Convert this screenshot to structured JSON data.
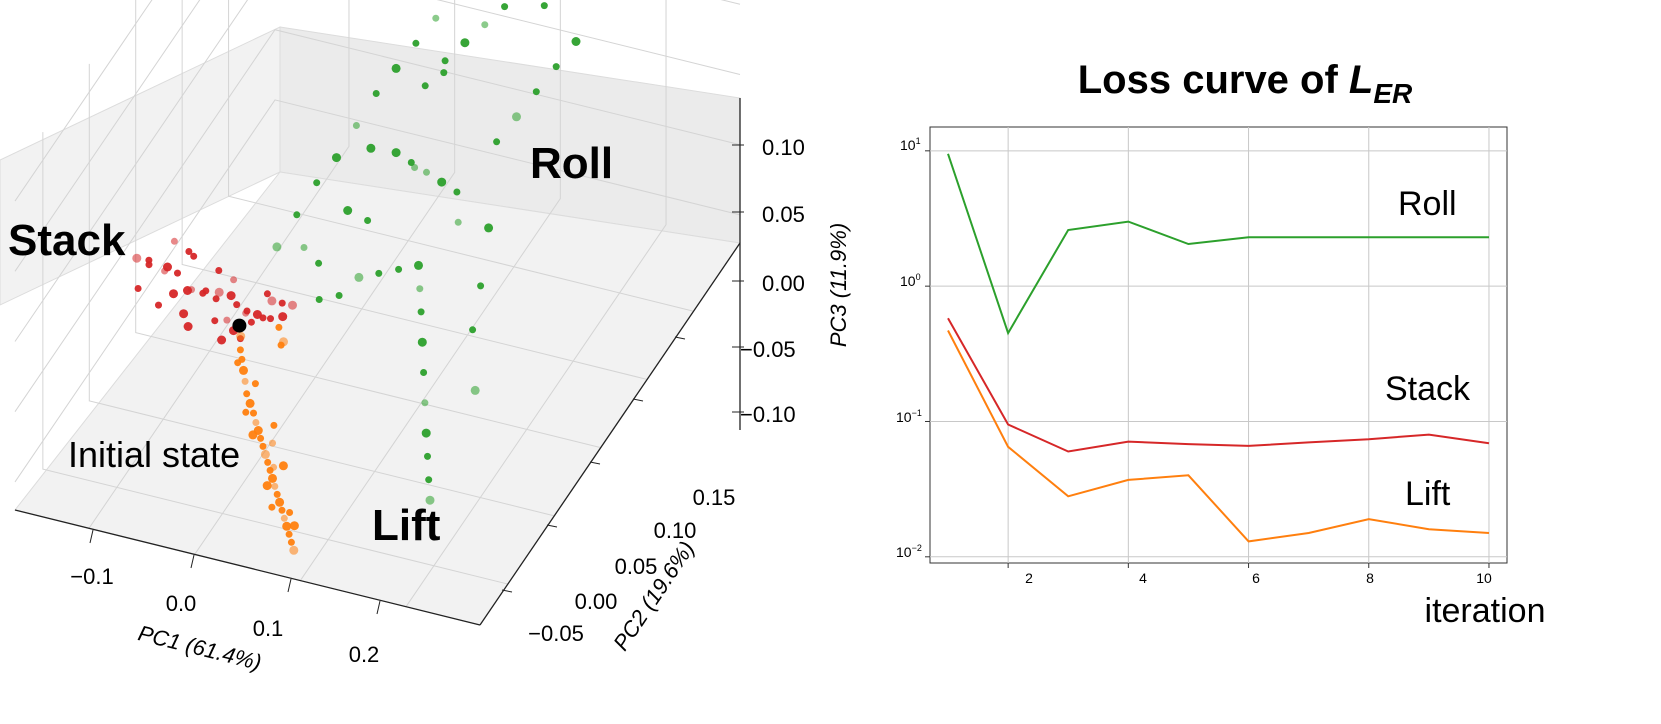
{
  "chart_data": [
    {
      "type": "scatter",
      "projection": "3d",
      "xlabel": "PC1 (61.4%)",
      "ylabel": "PC2 (19.6%)",
      "zlabel": "PC3 (11.9%)",
      "x_ticks": [
        "−0.1",
        "0.0",
        "0.1",
        "0.2"
      ],
      "y_ticks": [
        "−0.05",
        "0.00",
        "0.05",
        "0.10",
        "0.15"
      ],
      "z_ticks": [
        "0.10",
        "0.05",
        "0.00",
        "−0.05",
        "−0.10"
      ],
      "xlim": [
        -0.17,
        0.27
      ],
      "ylim": [
        -0.08,
        0.2
      ],
      "zlim": [
        -0.12,
        0.12
      ],
      "grid": true,
      "annotations": [
        {
          "text": "Stack",
          "color": "#000000",
          "bold": true
        },
        {
          "text": "Roll",
          "color": "#000000",
          "bold": true
        },
        {
          "text": "Lift",
          "color": "#000000",
          "bold": true
        },
        {
          "text": "Initial state",
          "color": "#000000",
          "bold": false
        }
      ],
      "initial_point": {
        "x": -0.028,
        "y": 0.0,
        "z": -0.04,
        "color": "#000000"
      },
      "series": [
        {
          "color": "#d62728",
          "points": [
            [
              -0.125,
              0,
              -0.01
            ],
            [
              -0.118,
              0.005,
              -0.015
            ],
            [
              -0.11,
              -0.004,
              -0.008
            ],
            [
              -0.103,
              0.008,
              -0.02
            ],
            [
              -0.097,
              -0.002,
              -0.012
            ],
            [
              -0.09,
              0.004,
              -0.018
            ],
            [
              -0.085,
              -0.006,
              -0.022
            ],
            [
              -0.08,
              0.01,
              -0.01
            ],
            [
              -0.075,
              0.002,
              -0.025
            ],
            [
              -0.07,
              -0.008,
              -0.015
            ],
            [
              -0.065,
              0.006,
              -0.028
            ],
            [
              -0.06,
              -0.003,
              -0.02
            ],
            [
              -0.055,
              0.009,
              -0.03
            ],
            [
              -0.05,
              0,
              -0.025
            ],
            [
              -0.046,
              -0.006,
              -0.034
            ],
            [
              -0.042,
              0.007,
              -0.028
            ],
            [
              -0.038,
              -0.002,
              -0.036
            ],
            [
              -0.034,
              0.004,
              -0.03
            ],
            [
              -0.03,
              -0.004,
              -0.04
            ],
            [
              -0.026,
              0.006,
              -0.035
            ],
            [
              -0.022,
              0,
              -0.03
            ],
            [
              -0.018,
              0.008,
              -0.038
            ],
            [
              -0.014,
              -0.003,
              -0.032
            ],
            [
              -0.01,
              0.005,
              -0.036
            ],
            [
              -0.006,
              0.01,
              -0.028
            ],
            [
              -0.002,
              0.004,
              -0.034
            ],
            [
              0.002,
              0.012,
              -0.03
            ],
            [
              0.006,
              0.008,
              -0.035
            ],
            [
              -0.1,
              0.012,
              -0.005
            ],
            [
              -0.088,
              0.014,
              -0.012
            ],
            [
              -0.072,
              -0.01,
              -0.03
            ],
            [
              -0.058,
              0.012,
              -0.018
            ],
            [
              -0.044,
              0.012,
              -0.022
            ],
            [
              -0.036,
              -0.01,
              -0.042
            ],
            [
              -0.02,
              -0.008,
              -0.04
            ],
            [
              -0.012,
              0.012,
              -0.026
            ],
            [
              0.01,
              0.014,
              -0.032
            ],
            [
              -0.115,
              -0.01,
              -0.02
            ],
            [
              -0.094,
              -0.012,
              -0.026
            ],
            [
              -0.066,
              -0.012,
              -0.036
            ]
          ]
        },
        {
          "color": "#ff7f0e",
          "points": [
            [
              -0.025,
              -0.002,
              -0.045
            ],
            [
              -0.02,
              -0.008,
              -0.048
            ],
            [
              -0.015,
              -0.012,
              -0.05
            ],
            [
              -0.01,
              -0.016,
              -0.053
            ],
            [
              -0.005,
              -0.02,
              -0.056
            ],
            [
              0,
              -0.024,
              -0.06
            ],
            [
              0.005,
              -0.026,
              -0.064
            ],
            [
              0.01,
              -0.028,
              -0.068
            ],
            [
              0.014,
              -0.03,
              -0.072
            ],
            [
              0.018,
              -0.032,
              -0.075
            ],
            [
              0.022,
              -0.034,
              -0.078
            ],
            [
              0.026,
              -0.036,
              -0.081
            ],
            [
              0.03,
              -0.038,
              -0.084
            ],
            [
              0.034,
              -0.04,
              -0.087
            ],
            [
              0.038,
              -0.042,
              -0.09
            ],
            [
              0.042,
              -0.044,
              -0.093
            ],
            [
              0.046,
              -0.046,
              -0.096
            ],
            [
              0.05,
              -0.048,
              -0.099
            ],
            [
              0.054,
              -0.05,
              -0.102
            ],
            [
              0.058,
              -0.052,
              -0.105
            ],
            [
              0.062,
              -0.054,
              -0.108
            ],
            [
              0.066,
              -0.056,
              -0.111
            ],
            [
              0.07,
              -0.058,
              -0.114
            ],
            [
              0.074,
              -0.06,
              -0.117
            ],
            [
              0.078,
              -0.062,
              -0.12
            ],
            [
              -0.012,
              -0.02,
              -0.044
            ],
            [
              0.003,
              -0.018,
              -0.058
            ],
            [
              0.02,
              -0.04,
              -0.07
            ],
            [
              0.036,
              -0.036,
              -0.094
            ],
            [
              0.052,
              -0.056,
              -0.1
            ],
            [
              0.068,
              -0.05,
              -0.116
            ],
            [
              0.008,
              -0.034,
              -0.062
            ],
            [
              0.028,
              -0.028,
              -0.086
            ],
            [
              0.044,
              -0.052,
              -0.09
            ],
            [
              0.06,
              -0.046,
              -0.112
            ],
            [
              0.005,
              0.005,
              -0.04
            ],
            [
              0.012,
              0.002,
              -0.046
            ],
            [
              0.015,
              -0.004,
              -0.042
            ],
            [
              0.024,
              -0.022,
              -0.08
            ],
            [
              0.04,
              -0.03,
              -0.098
            ]
          ]
        },
        {
          "color": "#2ca02c",
          "points": [
            [
              -0.01,
              0.02,
              0.0
            ],
            [
              0,
              0.03,
              0.015
            ],
            [
              0.01,
              0.04,
              0.03
            ],
            [
              0.02,
              0.05,
              0.04
            ],
            [
              0.03,
              0.06,
              0.055
            ],
            [
              0.04,
              0.07,
              0.07
            ],
            [
              0.05,
              0.08,
              0.08
            ],
            [
              0.06,
              0.09,
              0.09
            ],
            [
              0.07,
              0.1,
              0.1
            ],
            [
              0.08,
              0.11,
              0.11
            ],
            [
              0.03,
              0.02,
              -0.03
            ],
            [
              0.04,
              0.03,
              -0.035
            ],
            [
              0.05,
              0.04,
              -0.03
            ],
            [
              0.06,
              0.05,
              -0.035
            ],
            [
              0.07,
              0.06,
              -0.04
            ],
            [
              0.08,
              0.07,
              -0.045
            ],
            [
              0.09,
              0.06,
              -0.05
            ],
            [
              0.1,
              0.05,
              -0.055
            ],
            [
              0.11,
              0.04,
              -0.065
            ],
            [
              0.12,
              0.03,
              -0.075
            ],
            [
              0.13,
              0.02,
              -0.085
            ],
            [
              0.14,
              0.01,
              -0.095
            ],
            [
              0.15,
              0,
              -0.1
            ],
            [
              0.16,
              -0.01,
              -0.105
            ],
            [
              0.17,
              -0.02,
              -0.108
            ],
            [
              0.06,
              0.1,
              0.05
            ],
            [
              0.07,
              0.11,
              0.06
            ],
            [
              0.08,
              0.12,
              0.065
            ],
            [
              0.09,
              0.13,
              0.07
            ],
            [
              0.1,
              0.14,
              0.075
            ],
            [
              0.05,
              0.08,
              0.02
            ],
            [
              0.06,
              0.085,
              0.01
            ],
            [
              0.07,
              0.09,
              0.0
            ],
            [
              0.08,
              0.095,
              -0.01
            ],
            [
              0.09,
              0.1,
              -0.02
            ],
            [
              0.11,
              0.12,
              0.0
            ],
            [
              0.12,
              0.13,
              0.01
            ],
            [
              0.13,
              0.14,
              0.02
            ],
            [
              0.14,
              0.15,
              0.03
            ],
            [
              0.15,
              0.16,
              0.04
            ],
            [
              0.02,
              0.015,
              0.01
            ],
            [
              0.025,
              0.025,
              -0.01
            ],
            [
              0.035,
              0.045,
              0.01
            ],
            [
              0.045,
              0.055,
              -0.005
            ],
            [
              0.1,
              0.09,
              -0.03
            ],
            [
              0.12,
              0.1,
              -0.04
            ],
            [
              0.13,
              0.08,
              -0.06
            ],
            [
              0.14,
              0.06,
              -0.07
            ],
            [
              0.16,
              0.04,
              -0.09
            ],
            [
              0.12,
              0.16,
              0.06
            ],
            [
              0.06,
              0.12,
              0.04
            ],
            [
              0.035,
              0.07,
              0.03
            ],
            [
              0.05,
              0.1,
              -0.01
            ],
            [
              0.085,
              0.13,
              0.09
            ],
            [
              0.1,
              0.15,
              0.1
            ]
          ]
        }
      ]
    },
    {
      "type": "line",
      "title_prefix": "Loss curve of ",
      "title_symbol": "L",
      "title_subscript": "ER",
      "xlabel": "iteration",
      "x": [
        1,
        2,
        3,
        4,
        5,
        6,
        7,
        8,
        9,
        10
      ],
      "x_ticks": [
        "2",
        "4",
        "6",
        "8",
        "10"
      ],
      "y_scale": "log",
      "y_ticks": [
        {
          "base": "10",
          "exp": "1"
        },
        {
          "base": "10",
          "exp": "0"
        },
        {
          "base": "10",
          "exp": "−1"
        },
        {
          "base": "10",
          "exp": "−2"
        }
      ],
      "ylim": [
        0.009,
        15
      ],
      "grid": true,
      "series": [
        {
          "name": "Roll",
          "color": "#2ca02c",
          "values": [
            9.5,
            0.45,
            2.6,
            3.0,
            2.05,
            2.3,
            2.3,
            2.3,
            2.3,
            2.3
          ]
        },
        {
          "name": "Stack",
          "color": "#d62728",
          "values": [
            0.58,
            0.095,
            0.06,
            0.071,
            0.068,
            0.066,
            0.07,
            0.074,
            0.08,
            0.069
          ]
        },
        {
          "name": "Lift",
          "color": "#ff7f0e",
          "values": [
            0.47,
            0.065,
            0.028,
            0.037,
            0.04,
            0.013,
            0.015,
            0.019,
            0.016,
            0.015
          ]
        }
      ]
    }
  ]
}
